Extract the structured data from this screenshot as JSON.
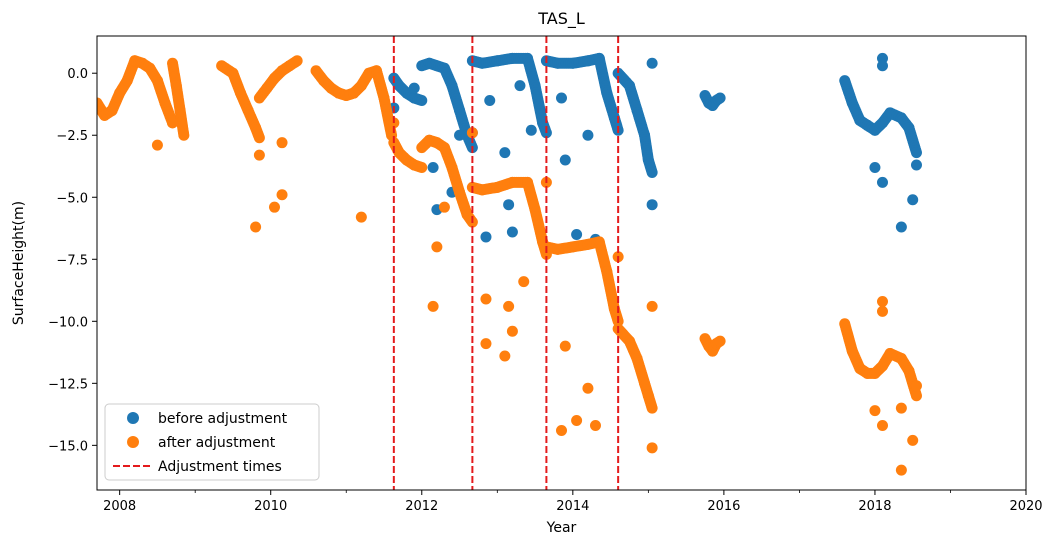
{
  "chart_data": {
    "type": "scatter",
    "title": "TAS_L",
    "xlabel": "Year",
    "ylabel": "SurfaceHeight(m)",
    "xlim": [
      2007.7,
      2020.0
    ],
    "ylim": [
      -16.8,
      1.5
    ],
    "x_ticks": [
      2008,
      2010,
      2012,
      2014,
      2016,
      2018,
      2020
    ],
    "x_tick_labels": [
      "2008",
      "2010",
      "2012",
      "2014",
      "2016",
      "2018",
      "2020"
    ],
    "x_minor_ticks": [
      2009,
      2011,
      2013,
      2015,
      2017,
      2019
    ],
    "y_ticks": [
      0.0,
      -2.5,
      -5.0,
      -7.5,
      -10.0,
      -12.5,
      -15.0
    ],
    "y_tick_labels": [
      "0.0",
      "−2.5",
      "−5.0",
      "−7.5",
      "−10.0",
      "−12.5",
      "−15.0"
    ],
    "grid": false,
    "legend_position": "lower-left",
    "series": [
      {
        "name": "before adjustment",
        "color": "#1f77b4",
        "segments": [
          {
            "x": [
              2011.63,
              2011.7,
              2011.8,
              2011.9,
              2012.0
            ],
            "y": [
              -0.2,
              -0.5,
              -0.8,
              -1.0,
              -1.1
            ]
          },
          {
            "x": [
              2012.0,
              2012.1,
              2012.2,
              2012.3,
              2012.4,
              2012.5,
              2012.6,
              2012.67
            ],
            "y": [
              0.3,
              0.4,
              0.3,
              0.2,
              -0.5,
              -1.5,
              -2.5,
              -3.0
            ]
          },
          {
            "x": [
              2012.67,
              2012.8,
              2013.0,
              2013.2,
              2013.4,
              2013.5,
              2013.6,
              2013.65
            ],
            "y": [
              0.5,
              0.4,
              0.5,
              0.6,
              0.6,
              -0.5,
              -2.0,
              -2.4
            ]
          },
          {
            "x": [
              2013.65,
              2013.8,
              2014.0,
              2014.2,
              2014.35,
              2014.45,
              2014.55,
              2014.6
            ],
            "y": [
              0.5,
              0.4,
              0.4,
              0.5,
              0.6,
              -0.8,
              -1.8,
              -2.3
            ]
          },
          {
            "x": [
              2014.6,
              2014.75,
              2014.85,
              2014.95,
              2015.0,
              2015.05
            ],
            "y": [
              0.0,
              -0.5,
              -1.5,
              -2.5,
              -3.5,
              -4.0
            ]
          },
          {
            "x": [
              2015.75,
              2015.8,
              2015.85,
              2015.9,
              2015.95
            ],
            "y": [
              -0.9,
              -1.2,
              -1.3,
              -1.1,
              -1.0
            ]
          },
          {
            "x": [
              2017.6,
              2017.7,
              2017.8,
              2017.9,
              2018.0,
              2018.1,
              2018.2,
              2018.35,
              2018.45,
              2018.55
            ],
            "y": [
              -0.3,
              -1.2,
              -1.9,
              -2.1,
              -2.3,
              -2.0,
              -1.6,
              -1.8,
              -2.2,
              -3.2
            ]
          }
        ],
        "outliers": [
          {
            "x": 2011.63,
            "y": -1.4
          },
          {
            "x": 2011.9,
            "y": -0.6
          },
          {
            "x": 2012.15,
            "y": -3.8
          },
          {
            "x": 2012.2,
            "y": -5.5
          },
          {
            "x": 2012.4,
            "y": -4.8
          },
          {
            "x": 2012.5,
            "y": -2.5
          },
          {
            "x": 2012.67,
            "y": -2.4
          },
          {
            "x": 2012.85,
            "y": -6.6
          },
          {
            "x": 2012.9,
            "y": -1.1
          },
          {
            "x": 2013.1,
            "y": -3.2
          },
          {
            "x": 2013.15,
            "y": -5.3
          },
          {
            "x": 2013.2,
            "y": -6.4
          },
          {
            "x": 2013.3,
            "y": -0.5
          },
          {
            "x": 2013.45,
            "y": -2.3
          },
          {
            "x": 2013.85,
            "y": -1.0
          },
          {
            "x": 2013.9,
            "y": -3.5
          },
          {
            "x": 2014.05,
            "y": -6.5
          },
          {
            "x": 2014.2,
            "y": -2.5
          },
          {
            "x": 2014.3,
            "y": -6.7
          },
          {
            "x": 2015.05,
            "y": -5.3
          },
          {
            "x": 2015.05,
            "y": 0.4
          },
          {
            "x": 2018.0,
            "y": -3.8
          },
          {
            "x": 2018.1,
            "y": -4.4
          },
          {
            "x": 2018.1,
            "y": 0.6
          },
          {
            "x": 2018.1,
            "y": 0.3
          },
          {
            "x": 2018.35,
            "y": -6.2
          },
          {
            "x": 2018.5,
            "y": -5.1
          },
          {
            "x": 2018.55,
            "y": -3.7
          }
        ]
      },
      {
        "name": "after adjustment",
        "color": "#ff7f0e",
        "segments": [
          {
            "x": [
              2007.7,
              2007.8,
              2007.9,
              2008.0,
              2008.1,
              2008.2,
              2008.3,
              2008.4,
              2008.5,
              2008.6,
              2008.7
            ],
            "y": [
              -1.2,
              -1.7,
              -1.5,
              -0.8,
              -0.3,
              0.5,
              0.4,
              0.2,
              -0.3,
              -1.2,
              -2.0
            ]
          },
          {
            "x": [
              2008.7,
              2008.75,
              2008.8,
              2008.85
            ],
            "y": [
              0.4,
              -0.5,
              -1.5,
              -2.5
            ]
          },
          {
            "x": [
              2009.35,
              2009.5,
              2009.6,
              2009.7,
              2009.8,
              2009.85
            ],
            "y": [
              0.3,
              0.0,
              -0.8,
              -1.5,
              -2.2,
              -2.6
            ]
          },
          {
            "x": [
              2009.85,
              2009.95,
              2010.05,
              2010.15,
              2010.25,
              2010.35
            ],
            "y": [
              -1.0,
              -0.6,
              -0.2,
              0.1,
              0.3,
              0.5
            ]
          },
          {
            "x": [
              2010.6,
              2010.7,
              2010.8,
              2010.9,
              2011.0,
              2011.1,
              2011.2,
              2011.3,
              2011.4,
              2011.5,
              2011.6
            ],
            "y": [
              0.1,
              -0.3,
              -0.6,
              -0.8,
              -0.9,
              -0.8,
              -0.5,
              0.0,
              0.1,
              -1.0,
              -2.5
            ]
          },
          {
            "x": [
              2011.63,
              2011.7,
              2011.8,
              2011.9,
              2012.0
            ],
            "y": [
              -2.8,
              -3.2,
              -3.5,
              -3.7,
              -3.8
            ]
          },
          {
            "x": [
              2012.0,
              2012.1,
              2012.2,
              2012.3,
              2012.4,
              2012.5,
              2012.6,
              2012.67
            ],
            "y": [
              -3.0,
              -2.7,
              -2.8,
              -3.0,
              -3.8,
              -4.8,
              -5.7,
              -6.0
            ]
          },
          {
            "x": [
              2012.67,
              2012.8,
              2013.0,
              2013.2,
              2013.4,
              2013.5,
              2013.6,
              2013.65
            ],
            "y": [
              -4.6,
              -4.7,
              -4.6,
              -4.4,
              -4.4,
              -5.5,
              -6.8,
              -7.3
            ]
          },
          {
            "x": [
              2013.65,
              2013.8,
              2014.0,
              2014.2,
              2014.35,
              2014.45,
              2014.55,
              2014.6
            ],
            "y": [
              -7.0,
              -7.1,
              -7.0,
              -6.9,
              -6.8,
              -8.0,
              -9.5,
              -10.0
            ]
          },
          {
            "x": [
              2014.6,
              2014.75,
              2014.85,
              2014.95,
              2015.0,
              2015.05
            ],
            "y": [
              -10.3,
              -10.8,
              -11.5,
              -12.5,
              -13.0,
              -13.5
            ]
          },
          {
            "x": [
              2015.75,
              2015.8,
              2015.85,
              2015.9,
              2015.95
            ],
            "y": [
              -10.7,
              -11.0,
              -11.2,
              -10.9,
              -10.8
            ]
          },
          {
            "x": [
              2017.6,
              2017.7,
              2017.8,
              2017.9,
              2018.0,
              2018.1,
              2018.2,
              2018.35,
              2018.45,
              2018.55
            ],
            "y": [
              -10.1,
              -11.2,
              -11.9,
              -12.1,
              -12.1,
              -11.8,
              -11.3,
              -11.5,
              -12.0,
              -13.0
            ]
          }
        ],
        "outliers": [
          {
            "x": 2008.5,
            "y": -2.9
          },
          {
            "x": 2008.7,
            "y": -2.0
          },
          {
            "x": 2009.8,
            "y": -6.2
          },
          {
            "x": 2009.85,
            "y": -3.3
          },
          {
            "x": 2010.05,
            "y": -5.4
          },
          {
            "x": 2010.15,
            "y": -4.9
          },
          {
            "x": 2010.15,
            "y": -2.8
          },
          {
            "x": 2011.2,
            "y": -5.8
          },
          {
            "x": 2011.63,
            "y": -2.0
          },
          {
            "x": 2012.15,
            "y": -9.4
          },
          {
            "x": 2012.2,
            "y": -7.0
          },
          {
            "x": 2012.3,
            "y": -5.4
          },
          {
            "x": 2012.67,
            "y": -2.4
          },
          {
            "x": 2012.85,
            "y": -9.1
          },
          {
            "x": 2012.85,
            "y": -10.9
          },
          {
            "x": 2013.1,
            "y": -11.4
          },
          {
            "x": 2013.15,
            "y": -9.4
          },
          {
            "x": 2013.2,
            "y": -10.4
          },
          {
            "x": 2013.35,
            "y": -8.4
          },
          {
            "x": 2013.65,
            "y": -4.4
          },
          {
            "x": 2013.85,
            "y": -14.4
          },
          {
            "x": 2013.9,
            "y": -11.0
          },
          {
            "x": 2014.05,
            "y": -14.0
          },
          {
            "x": 2014.2,
            "y": -12.7
          },
          {
            "x": 2014.3,
            "y": -14.2
          },
          {
            "x": 2014.6,
            "y": -7.4
          },
          {
            "x": 2015.05,
            "y": -15.1
          },
          {
            "x": 2015.05,
            "y": -9.4
          },
          {
            "x": 2018.0,
            "y": -13.6
          },
          {
            "x": 2018.1,
            "y": -14.2
          },
          {
            "x": 2018.1,
            "y": -9.2
          },
          {
            "x": 2018.1,
            "y": -9.6
          },
          {
            "x": 2018.35,
            "y": -16.0
          },
          {
            "x": 2018.35,
            "y": -13.5
          },
          {
            "x": 2018.5,
            "y": -14.8
          },
          {
            "x": 2018.55,
            "y": -12.6
          }
        ]
      }
    ],
    "adjustment_series": {
      "name": "Adjustment times",
      "color": "#e41a1c",
      "x": [
        2011.63,
        2012.67,
        2013.65,
        2014.6
      ]
    }
  }
}
